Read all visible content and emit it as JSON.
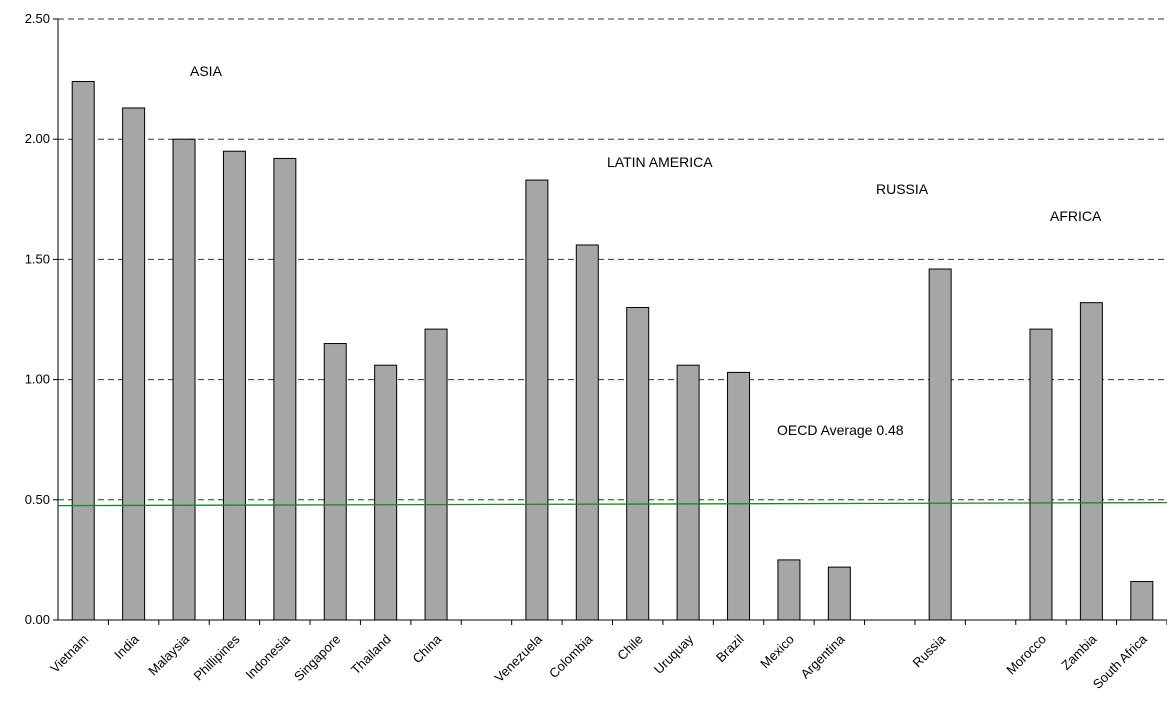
{
  "chart_data": {
    "type": "bar",
    "categories": [
      "Vietnam",
      "India",
      "Malaysia",
      "Phillipines",
      "Indonesia",
      "Singapore",
      "Thailand",
      "China",
      "",
      "Venezuela",
      "Colombia",
      "Chile",
      "Uruquay",
      "Brazil",
      "Mexico",
      "Argentina",
      "",
      "Russia",
      "",
      "Morocco",
      "Zambia",
      "South Africa"
    ],
    "values": [
      2.24,
      2.13,
      2.0,
      1.95,
      1.92,
      1.15,
      1.06,
      1.21,
      null,
      1.83,
      1.56,
      1.3,
      1.06,
      1.03,
      0.25,
      0.22,
      null,
      1.46,
      null,
      1.21,
      1.32,
      0.16
    ],
    "ylim": [
      0,
      2.5
    ],
    "yticks": [
      "0.00",
      "0.50",
      "1.00",
      "1.50",
      "2.00",
      "2.50"
    ],
    "grid": "dashed horizontal at each tick",
    "reference_line": {
      "label": "OECD Average 0.48",
      "value": 0.48,
      "color": "#1a8a1a"
    },
    "annotations": [
      "ASIA",
      "LATIN AMERICA",
      "RUSSIA",
      "AFRICA"
    ],
    "bar_fill": "#a6a6a6",
    "bar_stroke": "#000000",
    "title": "",
    "xlabel": "",
    "ylabel": ""
  }
}
